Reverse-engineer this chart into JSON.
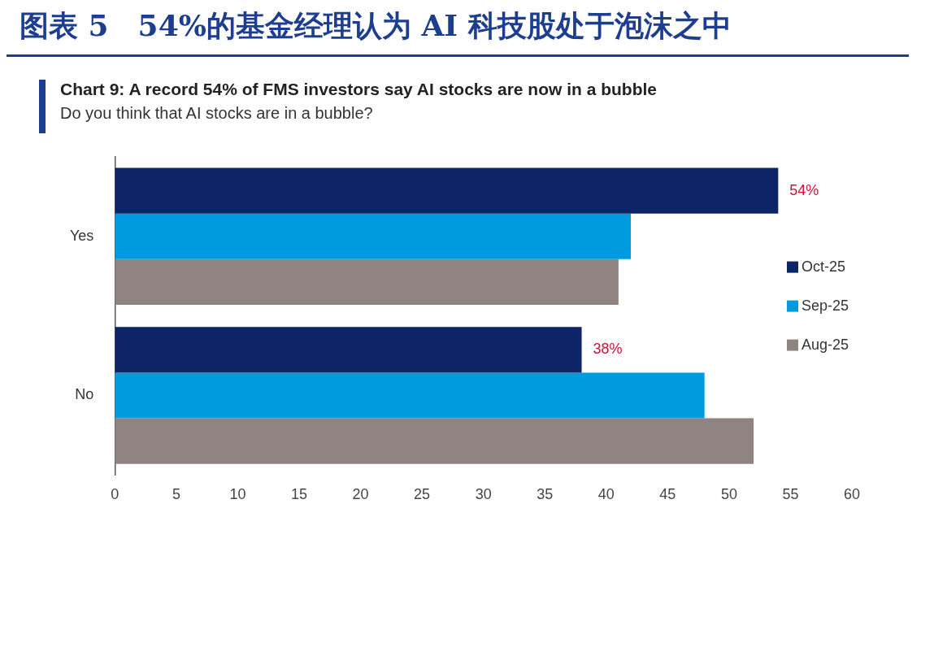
{
  "chart_data": {
    "type": "bar",
    "orientation": "horizontal",
    "title": "Chart 9: A record 54% of FMS investors say AI stocks are now in a bubble",
    "subtitle": "Do you think that AI stocks are in a bubble?",
    "annotations": [
      "图表 5　54%的基金经理认为 AI 科技股处于泡沫之中"
    ],
    "categories": [
      "Yes",
      "No"
    ],
    "series": [
      {
        "name": "Oct-25",
        "color": "#0d2466",
        "values": [
          54,
          38
        ],
        "value_labels": [
          "54%",
          "38%"
        ]
      },
      {
        "name": "Sep-25",
        "color": "#009ade",
        "values": [
          42,
          48
        ]
      },
      {
        "name": "Aug-25",
        "color": "#8f8482",
        "values": [
          41,
          52
        ]
      }
    ],
    "xlim": [
      0,
      60
    ],
    "xticks": [
      0,
      5,
      10,
      15,
      20,
      25,
      30,
      35,
      40,
      45,
      50,
      55,
      60
    ],
    "grid": false,
    "legend": "right"
  }
}
